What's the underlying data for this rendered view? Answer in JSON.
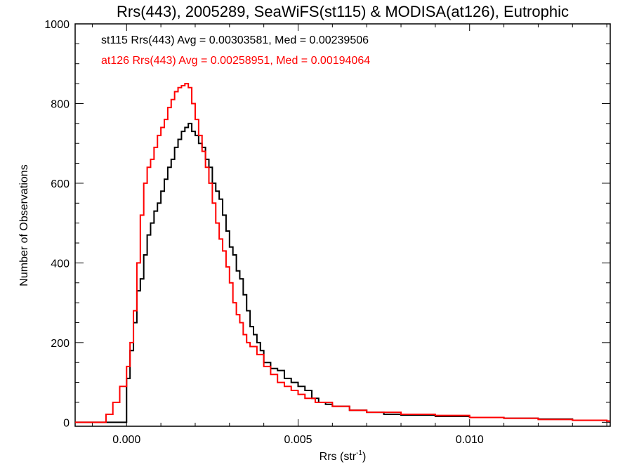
{
  "chart_data": {
    "type": "line",
    "title": "Rrs(443), 2005289, SeaWiFS(st115) & MODISA(at126), Eutrophic",
    "xlabel_base": "Rrs (str",
    "xlabel_sup": "-1",
    "xlabel_close": ")",
    "ylabel": "Number of Observations",
    "xlim": [
      -0.0015,
      0.0141
    ],
    "ylim": [
      -10,
      1000
    ],
    "x_ticks": [
      0.0,
      0.005,
      0.01
    ],
    "x_tick_labels": [
      "0.000",
      "0.005",
      "0.010"
    ],
    "y_ticks": [
      0,
      200,
      400,
      600,
      800,
      1000
    ],
    "y_tick_labels": [
      "0",
      "200",
      "400",
      "600",
      "800",
      "1000"
    ],
    "grid": false,
    "annotations": [
      {
        "text": "st115 Rrs(443) Avg = 0.00303581, Med = 0.00239506",
        "color": "#000000"
      },
      {
        "text": "at126 Rrs(443) Avg = 0.00258951, Med = 0.00194064",
        "color": "#ff0000"
      }
    ],
    "series": [
      {
        "color": "#000000",
        "x": [
          -0.0015,
          -0.0001,
          0.0,
          0.0001,
          0.0002,
          0.0003,
          0.0004,
          0.0005,
          0.0006,
          0.0007,
          0.0008,
          0.0009,
          0.001,
          0.0011,
          0.0012,
          0.0013,
          0.0014,
          0.0015,
          0.0016,
          0.0017,
          0.0018,
          0.0019,
          0.002,
          0.0021,
          0.0022,
          0.0023,
          0.0024,
          0.0025,
          0.0026,
          0.0027,
          0.0028,
          0.0029,
          0.003,
          0.0031,
          0.0032,
          0.0033,
          0.0034,
          0.0035,
          0.0036,
          0.0037,
          0.0038,
          0.0039,
          0.004,
          0.0042,
          0.0044,
          0.0046,
          0.0048,
          0.005,
          0.0052,
          0.0054,
          0.0056,
          0.0058,
          0.006,
          0.0065,
          0.007,
          0.0075,
          0.008,
          0.009,
          0.01,
          0.011,
          0.012,
          0.013,
          0.014
        ],
        "values": [
          0,
          0,
          110,
          180,
          250,
          330,
          360,
          420,
          470,
          500,
          530,
          550,
          580,
          610,
          640,
          660,
          690,
          710,
          730,
          740,
          750,
          730,
          720,
          700,
          690,
          660,
          640,
          600,
          580,
          560,
          520,
          480,
          440,
          420,
          380,
          360,
          320,
          280,
          240,
          220,
          200,
          180,
          150,
          135,
          130,
          110,
          100,
          90,
          80,
          60,
          50,
          45,
          40,
          30,
          25,
          20,
          18,
          15,
          12,
          10,
          8,
          5,
          3
        ]
      },
      {
        "color": "#ff0000",
        "x": [
          -0.0015,
          -0.0008,
          -0.0006,
          -0.0004,
          -0.0002,
          0.0,
          0.0001,
          0.0002,
          0.0003,
          0.0004,
          0.0005,
          0.0006,
          0.0007,
          0.0008,
          0.0009,
          0.001,
          0.0011,
          0.0012,
          0.0013,
          0.0014,
          0.0015,
          0.0016,
          0.0017,
          0.0018,
          0.0019,
          0.002,
          0.0021,
          0.0022,
          0.0023,
          0.0024,
          0.0025,
          0.0026,
          0.0027,
          0.0028,
          0.0029,
          0.003,
          0.0031,
          0.0032,
          0.0033,
          0.0034,
          0.0035,
          0.0036,
          0.0038,
          0.004,
          0.0042,
          0.0044,
          0.0046,
          0.0048,
          0.005,
          0.0052,
          0.0055,
          0.006,
          0.0065,
          0.007,
          0.008,
          0.009,
          0.01,
          0.011,
          0.012,
          0.013,
          0.014
        ],
        "values": [
          0,
          0,
          20,
          50,
          90,
          140,
          200,
          280,
          400,
          520,
          600,
          640,
          660,
          690,
          720,
          740,
          760,
          790,
          810,
          830,
          840,
          845,
          850,
          840,
          800,
          760,
          720,
          680,
          640,
          600,
          550,
          500,
          460,
          430,
          390,
          350,
          300,
          270,
          250,
          220,
          200,
          190,
          170,
          140,
          120,
          100,
          90,
          80,
          70,
          60,
          50,
          40,
          30,
          25,
          20,
          17,
          12,
          10,
          7,
          5,
          3
        ]
      }
    ]
  }
}
